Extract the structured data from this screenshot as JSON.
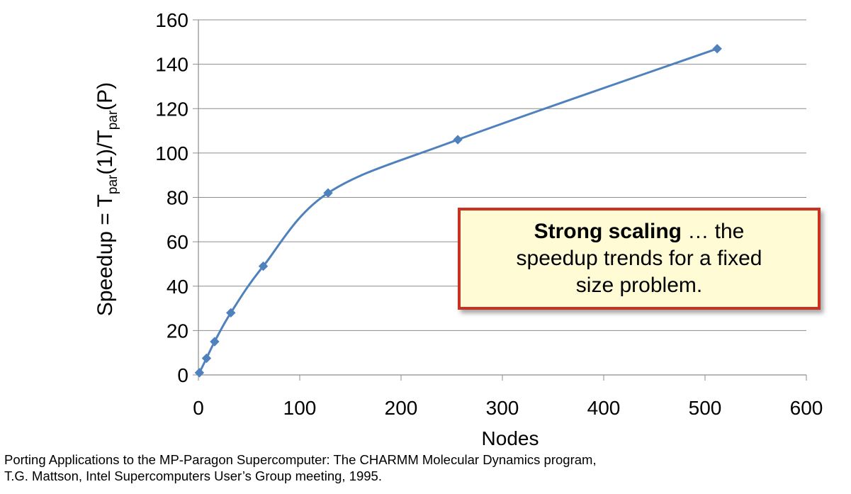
{
  "chart_data": {
    "type": "line",
    "xlabel": "Nodes",
    "ylabel_parts": {
      "a": "Speedup = T",
      "sub1": "par",
      "b": "(1)/T",
      "sub2": "par",
      "c": "(P)"
    },
    "xlim": [
      0,
      600
    ],
    "ylim": [
      0,
      160
    ],
    "x_ticks": [
      0,
      100,
      200,
      300,
      400,
      500,
      600
    ],
    "y_ticks": [
      0,
      20,
      40,
      60,
      80,
      100,
      120,
      140,
      160
    ],
    "grid": "horizontal",
    "series": [
      {
        "color": "#4f81bd",
        "marker": "diamond",
        "x": [
          1,
          8,
          16,
          32,
          64,
          128,
          256,
          512
        ],
        "y": [
          1,
          7.5,
          15,
          28,
          49,
          82,
          106,
          147
        ]
      }
    ]
  },
  "callout": {
    "bold": "Strong scaling",
    "line1_rest": " … the",
    "line2": "speedup trends for a fixed",
    "line3": "size problem."
  },
  "citation": {
    "line1": "Porting Applications to the MP-Paragon Supercomputer: The CHARMM Molecular Dynamics program,",
    "line2": "T.G. Mattson, Intel Supercomputers User’s Group meeting, 1995."
  }
}
